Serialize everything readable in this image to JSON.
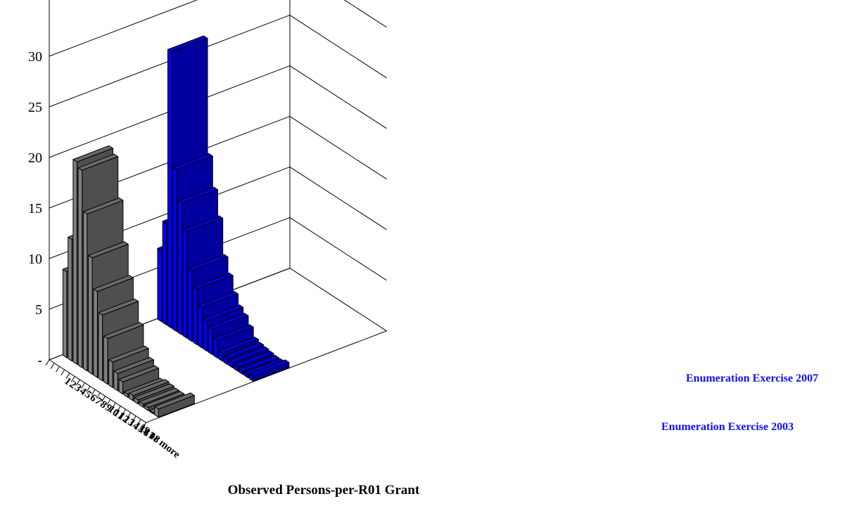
{
  "chart_data": {
    "type": "bar",
    "title": "",
    "xlabel": "Observed Persons-per-R01 Grant",
    "ylabel": "",
    "ylim": [
      0,
      30
    ],
    "yticks": [
      "-",
      "5",
      "10",
      "15",
      "20",
      "25",
      "30"
    ],
    "ytick_values": [
      0,
      5,
      10,
      15,
      20,
      25,
      30
    ],
    "grid": true,
    "categories": [
      "1",
      "2",
      "3",
      "4",
      "5",
      "6",
      "7",
      "8",
      "9",
      "10",
      "11",
      "12",
      "13",
      "14",
      "15",
      "16",
      "17",
      "18",
      "19 or more"
    ],
    "series": [
      {
        "name": "Enumeration Exercise 2007",
        "color": "#0000ff",
        "values": [
          7.0,
          10.0,
          27.3,
          16.0,
          13.0,
          10.5,
          7.0,
          5.5,
          4.0,
          3.0,
          2.5,
          1.7,
          0.8,
          0.6,
          0.5,
          0.4,
          0.3,
          0.3,
          0.5
        ]
      },
      {
        "name": "Enumeration Exercise 2003",
        "color": "#808080",
        "values": [
          8.5,
          12.0,
          20.0,
          19.5,
          15.5,
          11.5,
          8.5,
          6.5,
          4.5,
          2.5,
          1.7,
          1.2,
          0.3,
          0.5,
          0.4,
          0.3,
          0.3,
          0.1,
          0.8
        ]
      }
    ]
  }
}
